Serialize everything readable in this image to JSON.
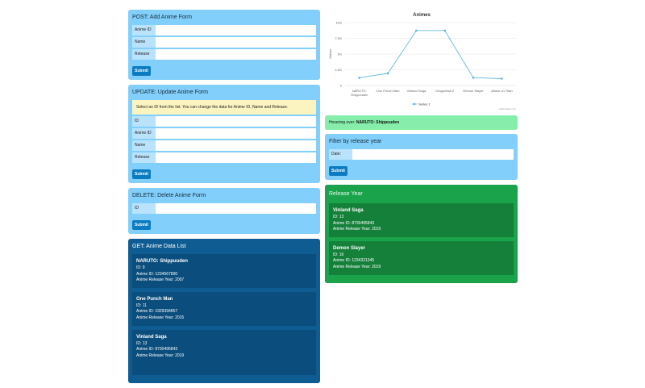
{
  "post": {
    "title": "POST: Add Anime Form",
    "fields": [
      "Anime ID",
      "Name",
      "Release"
    ],
    "submit": "Submit"
  },
  "update": {
    "title": "UPDATE: Update Anime Form",
    "note": "Select an ID from the list. You can change the data for Anime ID, Name and Release.",
    "fields": [
      "ID",
      "Anime ID",
      "Name",
      "Release"
    ],
    "submit": "Submit"
  },
  "delete": {
    "title": "DELETE: Delete Anime Form",
    "fields": [
      "ID"
    ],
    "submit": "Submit"
  },
  "get": {
    "title": "GET: Anime Data List",
    "items": [
      {
        "name": "NARUTO: Shippuuden",
        "id": "ID: 9",
        "anime_id": "Anime ID: 1234567890",
        "year": "Anime Release Year: 2007"
      },
      {
        "name": "One Punch Man",
        "id": "ID: 11",
        "anime_id": "Anime ID: 1929394857",
        "year": "Anime Release Year: 2015"
      },
      {
        "name": "Vinland Saga",
        "id": "ID: 13",
        "anime_id": "Anime ID: 8730495843",
        "year": "Anime Release Year: 2019"
      }
    ]
  },
  "hover": {
    "prefix": "Hovering over: ",
    "name": "NARUTO: Shippuuden"
  },
  "filter": {
    "title": "Filter by release year",
    "field": "Date:",
    "submit": "Submit"
  },
  "release": {
    "title": "Release Year",
    "items": [
      {
        "name": "Vinland Saga",
        "id": "ID: 13",
        "anime_id": "Anime ID: 8730495843",
        "year": "Anime Release Year: 2019"
      },
      {
        "name": "Demon Slayer",
        "id": "ID: 16",
        "anime_id": "Anime ID: 1234321345",
        "year": "Anime Release Year: 2019"
      }
    ]
  },
  "chart_data": {
    "type": "line",
    "title": "Animes",
    "ylabel": "Values",
    "xlabel": "",
    "categories": [
      "NARUTO: Shippuuden",
      "One Punch Man",
      "Vinland Saga",
      "Dragonball Z",
      "Demon Slayer",
      "Attack on Titan"
    ],
    "series": [
      {
        "name": "Series 1",
        "values": [
          1234567890,
          1929394857,
          8730495843,
          8730495843,
          1234321345,
          1100000000
        ]
      }
    ],
    "ylim": [
      0,
      10000000000
    ],
    "yticks": [
      "0",
      "2.5G",
      "5G",
      "7.5G",
      "10G"
    ],
    "grid": true,
    "legend": "bottom",
    "color": "#4fb3e0",
    "credit": "Highcharts.com"
  }
}
